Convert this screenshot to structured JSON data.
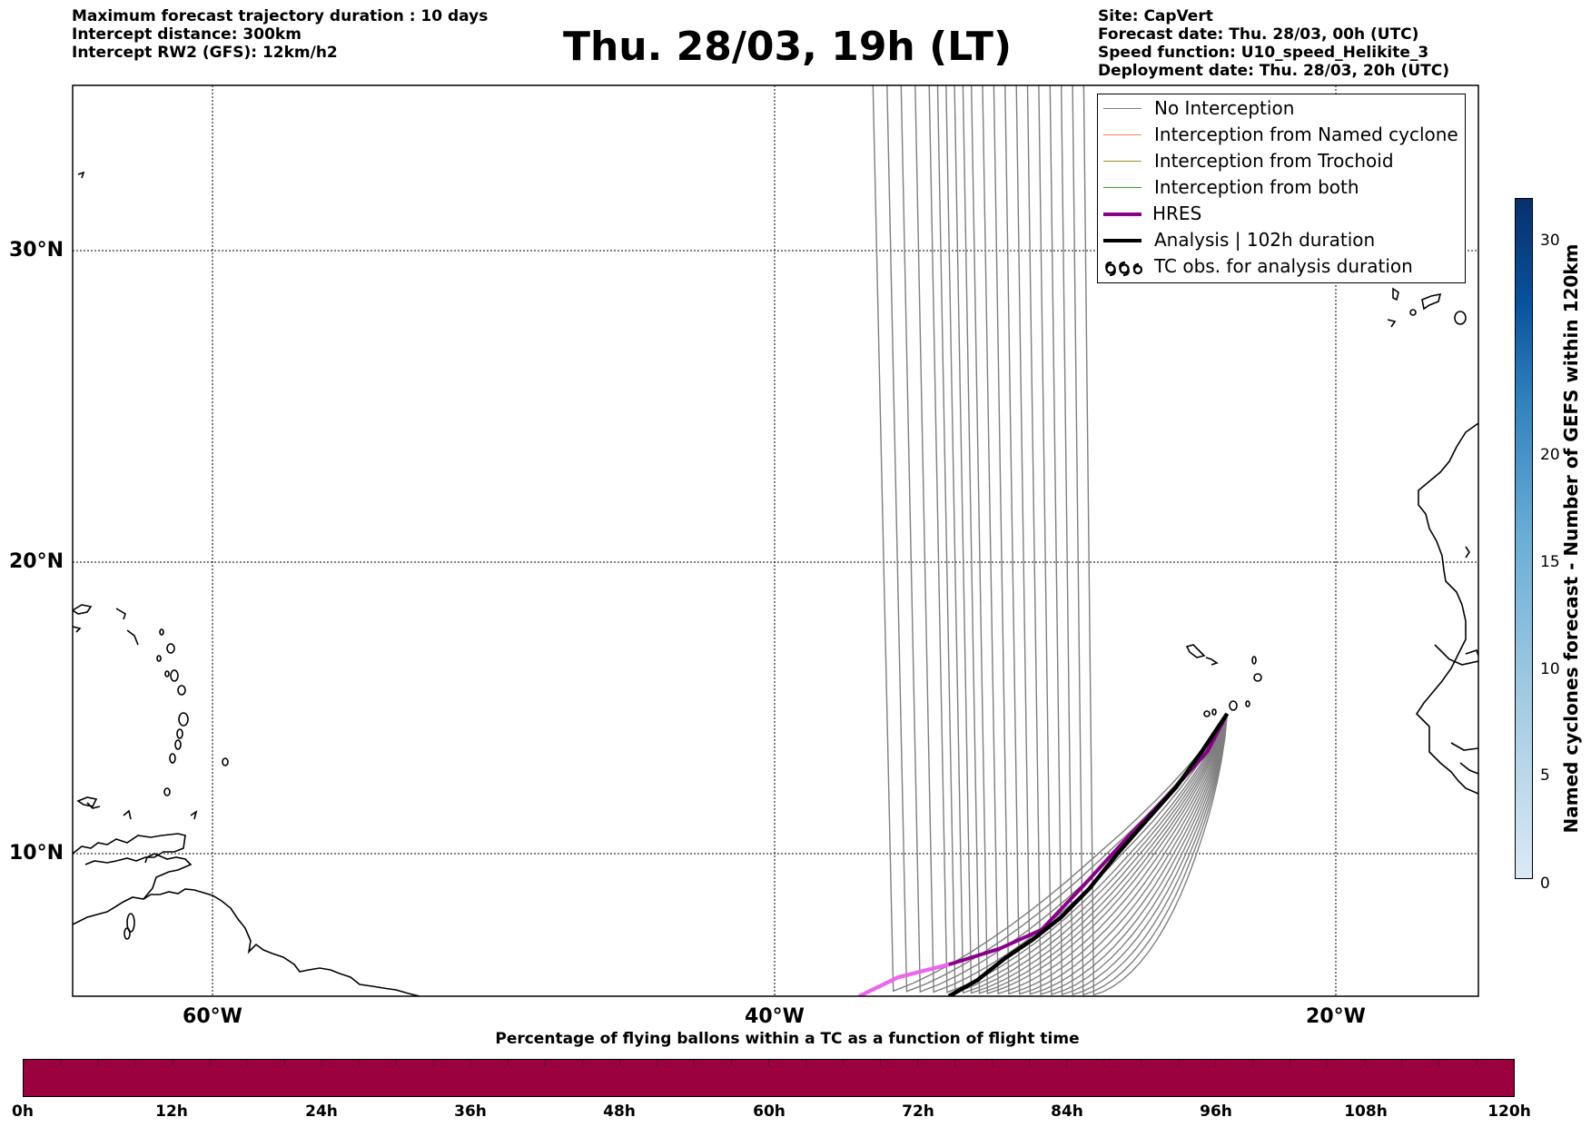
{
  "header": {
    "left": [
      "Maximum forecast trajectory duration : 10 days",
      "Intercept distance: 300km",
      "Intercept RW2 (GFS):  12km/h2"
    ],
    "title": "Thu. 28/03, 19h (LT)",
    "right": [
      "Site: CapVert",
      "Forecast date: Thu. 28/03, 00h (UTC)",
      "Speed function: U10_speed_Helikite_3",
      "Deployment date: Thu. 28/03, 20h (UTC)"
    ]
  },
  "map": {
    "lat_labels": [
      "30°N",
      "20°N",
      "10°N"
    ],
    "lon_labels": [
      "60°W",
      "40°W",
      "20°W"
    ],
    "gridlines": true,
    "land_outline_color": "#000000"
  },
  "legend": {
    "placement": "top-right",
    "items": [
      {
        "label": "No Interception",
        "color": "#7f7f7f",
        "style": "thin-line"
      },
      {
        "label": "Interception from Named cyclone",
        "color": "#ff7f50",
        "style": "thin-line"
      },
      {
        "label": "Interception from Trochoid",
        "color": "#9a8f2e",
        "style": "thin-line"
      },
      {
        "label": "Interception from both",
        "color": "#2ca02c",
        "style": "thin-line"
      },
      {
        "label": "HRES",
        "color": "#8b008b",
        "style": "thick-line"
      },
      {
        "label": "Analysis | 102h duration",
        "color": "#000000",
        "style": "thick-line"
      },
      {
        "label": "TC obs. for analysis duration",
        "color": "#000000",
        "style": "cyclone-symbols"
      }
    ]
  },
  "chart_data": [
    {
      "type": "line",
      "title": "Thu. 28/03, 19h (LT)",
      "xlabel": "",
      "ylabel": "",
      "x_unit": "degrees longitude (negative = W)",
      "y_unit": "degrees latitude (N)",
      "xlim": [
        -65,
        -15
      ],
      "ylim": [
        5.5,
        35
      ],
      "grid": true,
      "series": [
        {
          "name": "HRES",
          "color": "#8b008b",
          "x": [
            -23.9,
            -24.6,
            -26.0,
            -27.5,
            -29.0,
            -30.5,
            -32.0,
            -33.8,
            -35.6,
            -37.0
          ],
          "y": [
            14.8,
            13.5,
            12.0,
            10.5,
            9.0,
            7.6,
            7.0,
            6.5,
            6.1,
            5.5
          ]
        },
        {
          "name": "Analysis | 102h duration",
          "color": "#000000",
          "x": [
            -23.9,
            -24.8,
            -25.7,
            -26.8,
            -27.8,
            -28.8,
            -29.8,
            -30.8,
            -31.8,
            -32.8,
            -33.8
          ],
          "y": [
            14.8,
            13.5,
            12.3,
            11.1,
            10.0,
            8.9,
            8.0,
            7.3,
            6.7,
            6.0,
            5.5
          ]
        }
      ],
      "ensemble": {
        "label": "No Interception",
        "color": "#7f7f7f",
        "origin": [
          -23.9,
          14.8
        ],
        "end_x": [
          -36.5,
          -36.0,
          -35.5,
          -35.0,
          -34.5,
          -34.2,
          -33.9,
          -33.6,
          -33.3,
          -33.0,
          -32.6,
          -32.2,
          -31.8,
          -31.4,
          -31.0,
          -30.6,
          -30.2,
          -29.8,
          -29.4,
          -29.0
        ],
        "end_y": [
          5.5,
          5.5,
          5.5,
          5.5,
          5.5,
          5.5,
          5.5,
          5.5,
          5.5,
          5.5,
          5.5,
          5.5,
          5.5,
          5.5,
          5.5,
          5.5,
          5.5,
          5.5,
          5.5,
          5.5
        ]
      }
    },
    {
      "type": "heatmap",
      "title": "",
      "ylabel": "Named cyclones forecast - Number of GEFS within 120km",
      "ticks": [
        0,
        5,
        10,
        15,
        20,
        30
      ],
      "range": [
        0,
        32
      ],
      "color_low": "#dbe9f6",
      "color_high": "#08306b"
    },
    {
      "type": "heatmap",
      "title": "Percentage of flying ballons within a TC as a function of flight time",
      "ticks": [
        "0h",
        "12h",
        "24h",
        "36h",
        "48h",
        "60h",
        "72h",
        "84h",
        "96h",
        "108h",
        "120h"
      ],
      "fill_color": "#9b003f"
    }
  ]
}
